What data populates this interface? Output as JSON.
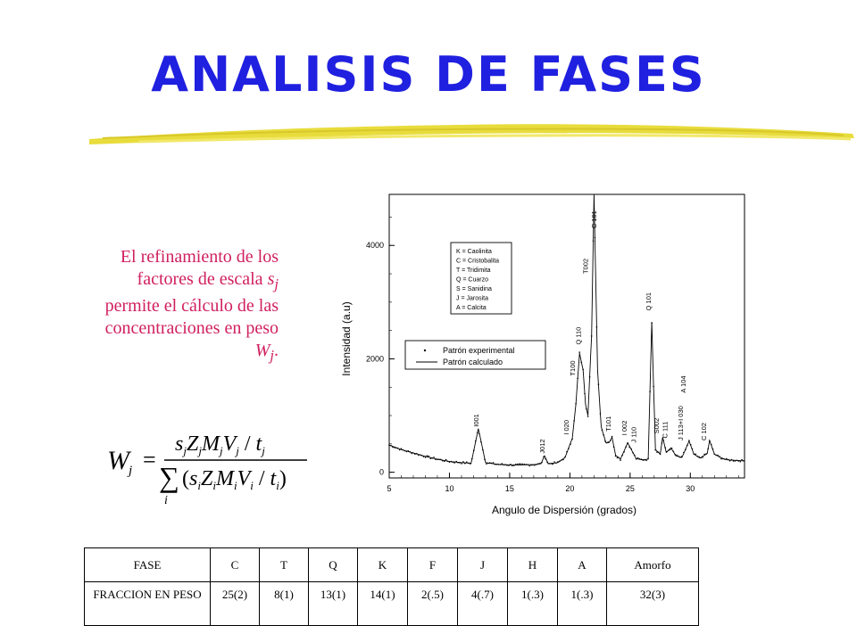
{
  "page": {
    "title": "ANALISIS DE FASES"
  },
  "description": {
    "prefix": "El refinamiento de los factores de escala ",
    "sym_s": "s",
    "sub_j": "j",
    "middle": " permite el cálculo de las concentraciones en peso ",
    "sym_W": "W",
    "sub_j2": "j",
    "suffix": "."
  },
  "formula": {
    "lhs": "W",
    "lhs_sub": "j",
    "equals": "=",
    "num_parts": [
      "s",
      "j",
      "Z",
      "j",
      "M",
      "j",
      "V",
      "j",
      " / ",
      "t",
      "j"
    ],
    "sum_symbol": "∑",
    "sum_index": "i",
    "den_parts": [
      "(",
      "s",
      "i",
      "Z",
      "i",
      "M",
      "i",
      "V",
      "i",
      " / ",
      "t",
      "i",
      ")"
    ]
  },
  "chart_data": {
    "type": "line",
    "xlabel": "Angulo de Dispersión (grados)",
    "ylabel": "Intensidad (a.u)",
    "xlim": [
      5,
      34.5
    ],
    "ylim": [
      -100,
      4900
    ],
    "x_ticks": [
      5,
      10,
      15,
      20,
      25,
      30
    ],
    "y_ticks": [
      0,
      2000,
      4000
    ],
    "series": [
      {
        "name": "Patrón experimental",
        "style": "dots"
      },
      {
        "name": "Patrón calculado",
        "style": "line"
      }
    ],
    "baseline_points": [
      [
        5,
        480
      ],
      [
        6,
        400
      ],
      [
        7,
        340
      ],
      [
        8,
        280
      ],
      [
        9,
        230
      ],
      [
        10,
        190
      ],
      [
        11,
        170
      ],
      [
        11.8,
        160
      ],
      [
        12.4,
        770
      ],
      [
        13,
        170
      ],
      [
        14,
        140
      ],
      [
        15,
        130
      ],
      [
        16,
        130
      ],
      [
        17,
        135
      ],
      [
        17.6,
        150
      ],
      [
        17.9,
        290
      ],
      [
        18.2,
        150
      ],
      [
        19,
        170
      ],
      [
        19.6,
        260
      ],
      [
        20.2,
        600
      ],
      [
        20.5,
        1200
      ],
      [
        20.8,
        2100
      ],
      [
        21.1,
        1800
      ],
      [
        21.3,
        1200
      ],
      [
        21.5,
        1000
      ],
      [
        21.8,
        2400
      ],
      [
        22.0,
        4900
      ],
      [
        22.3,
        1800
      ],
      [
        22.6,
        800
      ],
      [
        23,
        520
      ],
      [
        23.3,
        540
      ],
      [
        23.5,
        620
      ],
      [
        23.8,
        300
      ],
      [
        24.2,
        230
      ],
      [
        24.8,
        520
      ],
      [
        25.1,
        400
      ],
      [
        25.5,
        240
      ],
      [
        26,
        220
      ],
      [
        26.5,
        230
      ],
      [
        26.8,
        2650
      ],
      [
        27.1,
        400
      ],
      [
        27.5,
        320
      ],
      [
        27.7,
        620
      ],
      [
        28,
        350
      ],
      [
        28.4,
        430
      ],
      [
        28.8,
        290
      ],
      [
        29.3,
        260
      ],
      [
        29.9,
        550
      ],
      [
        30.3,
        320
      ],
      [
        30.8,
        250
      ],
      [
        31.4,
        330
      ],
      [
        31.6,
        560
      ],
      [
        32,
        320
      ],
      [
        32.5,
        260
      ],
      [
        33,
        220
      ],
      [
        34.5,
        200
      ]
    ],
    "peak_labels": [
      {
        "x": 12.4,
        "y": 800,
        "text": "I001"
      },
      {
        "x": 17.9,
        "y": 330,
        "text": "J012"
      },
      {
        "x": 19.9,
        "y": 660,
        "text": "I 020"
      },
      {
        "x": 20.4,
        "y": 1700,
        "text": "T100"
      },
      {
        "x": 20.9,
        "y": 2250,
        "text": "Q 110"
      },
      {
        "x": 21.5,
        "y": 3500,
        "text": "T002"
      },
      {
        "x": 22.2,
        "y": 4300,
        "text": "C 101"
      },
      {
        "x": 23.4,
        "y": 720,
        "text": "T101"
      },
      {
        "x": 24.7,
        "y": 650,
        "text": "I 002"
      },
      {
        "x": 25.5,
        "y": 520,
        "text": "J 110"
      },
      {
        "x": 26.7,
        "y": 2850,
        "text": "Q 101"
      },
      {
        "x": 27.4,
        "y": 680,
        "text": "S002"
      },
      {
        "x": 28.1,
        "y": 600,
        "text": "C 111"
      },
      {
        "x": 29.4,
        "y": 560,
        "text": "J 113+I 030"
      },
      {
        "x": 29.6,
        "y": 1400,
        "text": "A 104"
      },
      {
        "x": 31.3,
        "y": 560,
        "text": "C 102"
      }
    ],
    "phase_key": [
      "K = Caolinita",
      "C = Cristobalita",
      "T = Tridimita",
      "Q = Cuarzo",
      "S = Sanidina",
      "J = Jarosita",
      "A = Calcita"
    ]
  },
  "table": {
    "headers": [
      "FASE",
      "C",
      "T",
      "Q",
      "K",
      "F",
      "J",
      "H",
      "A",
      "Amorfo"
    ],
    "row_label": "FRACCION EN PESO",
    "values": [
      "25(2)",
      "8(1)",
      "13(1)",
      "14(1)",
      "2(.5)",
      "4(.7)",
      "1(.3)",
      "1(.3)",
      "32(3)"
    ]
  },
  "colors": {
    "title": "#2020e0",
    "description": "#d0205f",
    "brush": "#e8dc3c"
  }
}
